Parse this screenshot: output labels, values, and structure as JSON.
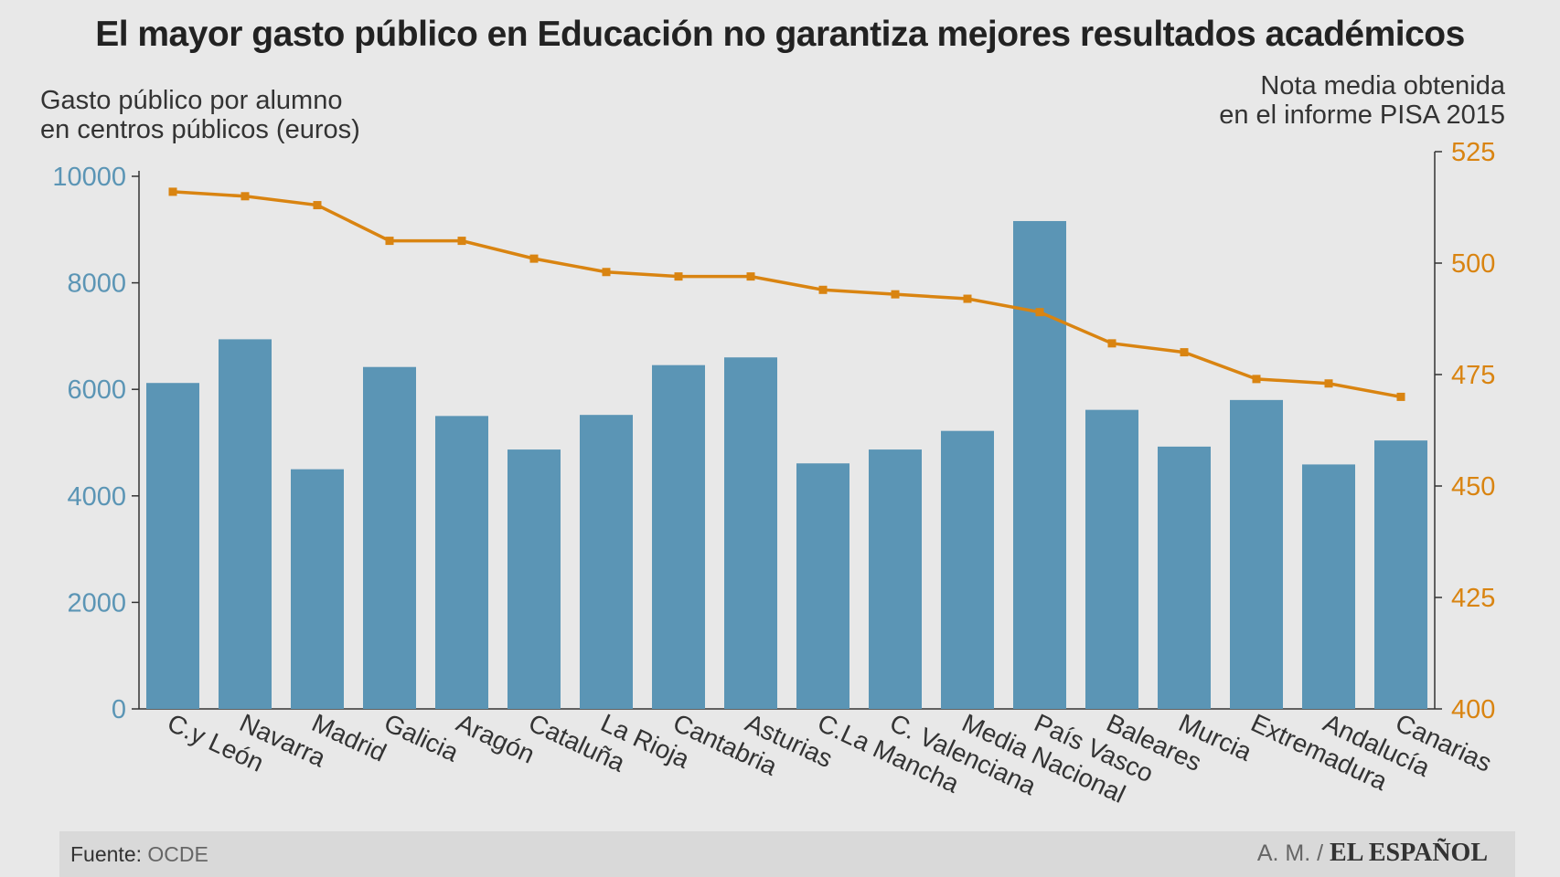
{
  "chart_data": {
    "type": "bar+line",
    "title": "El mayor gasto público en Educación no garantiza mejores resultados académicos",
    "ylabel": [
      "Gasto público por alumno",
      "en centros públicos (euros)"
    ],
    "y2label": [
      "Nota media obtenida",
      "en el informe PISA 2015"
    ],
    "ylim": [
      0,
      10000
    ],
    "y2lim": [
      400,
      525
    ],
    "yticks": [
      "0",
      "2000",
      "4000",
      "6000",
      "8000",
      "10000"
    ],
    "y2ticks": [
      "400",
      "425",
      "450",
      "475",
      "500",
      "525"
    ],
    "categories": [
      "C.y León",
      "Navarra",
      "Madrid",
      "Galicia",
      "Aragón",
      "Cataluña",
      "La Rioja",
      "Cantabria",
      "Asturias",
      "C.La Mancha",
      "C. Valenciana",
      "Media Nacional",
      "País Vasco",
      "Baleares",
      "Murcia",
      "Extremadura",
      "Andalucía",
      "Canarias"
    ],
    "series": [
      {
        "name": "Gasto público por alumno",
        "type": "bar",
        "axis": "left",
        "color": "#5b95b5",
        "values": [
          6120,
          6940,
          4500,
          6420,
          5500,
          4870,
          5520,
          6455,
          6600,
          4610,
          4870,
          5220,
          9160,
          5615,
          4925,
          5800,
          4590,
          5040
        ]
      },
      {
        "name": "Nota media PISA 2015",
        "type": "line",
        "axis": "right",
        "color": "#d98411",
        "values": [
          516,
          515,
          513,
          505,
          505,
          501,
          498,
          497,
          497,
          494,
          493,
          492,
          489,
          482,
          480,
          474,
          473,
          470
        ]
      }
    ],
    "grid": false
  },
  "footer": {
    "source_label": "Fuente:",
    "source_value": "OCDE",
    "author": "A. M. /",
    "brand": "EL ESPAÑOL"
  }
}
